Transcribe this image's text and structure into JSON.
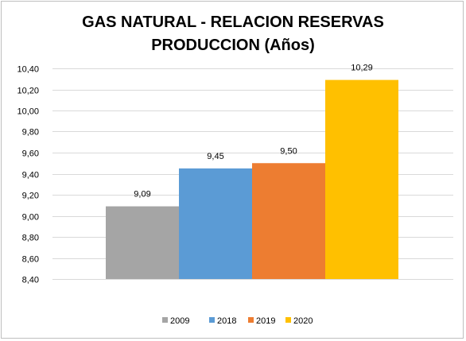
{
  "chart_data": {
    "type": "bar",
    "title_lines": [
      "GAS NATURAL - RELACION RESERVAS",
      "PRODUCCION (Años)"
    ],
    "categories": [
      "2009",
      "2018",
      "2019",
      "2020"
    ],
    "values": [
      9.09,
      9.45,
      9.5,
      10.29
    ],
    "value_labels": [
      "9,09",
      "9,45",
      "9,50",
      "10,29"
    ],
    "colors": [
      "#a5a5a5",
      "#5b9bd5",
      "#ed7d31",
      "#ffc000"
    ],
    "ylim": [
      8.4,
      10.4
    ],
    "yticks": [
      8.4,
      8.6,
      8.8,
      9.0,
      9.2,
      9.4,
      9.6,
      9.8,
      10.0,
      10.2,
      10.4
    ],
    "ytick_labels": [
      "8,40",
      "8,60",
      "8,80",
      "9,00",
      "9,20",
      "9,40",
      "9,60",
      "9,80",
      "10,00",
      "10,20",
      "10,40"
    ],
    "grid": true,
    "legend_position": "bottom",
    "xlabel": "",
    "ylabel": ""
  }
}
